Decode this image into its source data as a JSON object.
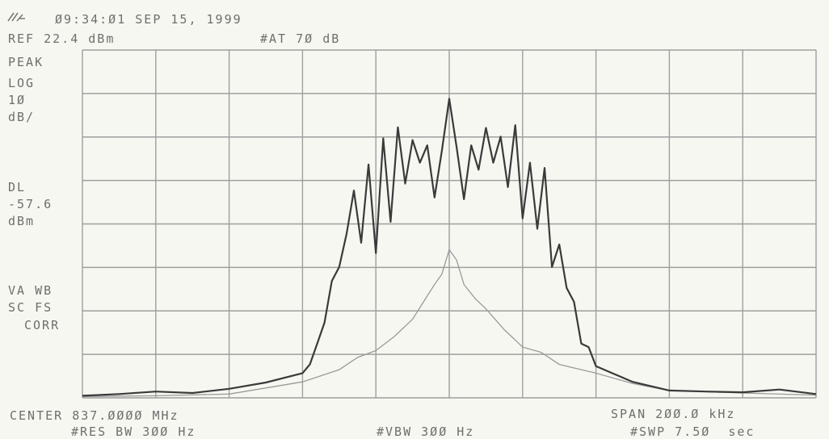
{
  "header": {
    "timestamp": "Ø9:34:Ø1 SEP 15, 1999",
    "ref_level": "REF 22.4 dBm",
    "attenuation": "#AT 7Ø dB"
  },
  "left_annotations": {
    "detector": "PEAK",
    "scale_mode": "LOG",
    "scale_value": "1Ø",
    "scale_unit": "dB/",
    "display_line_label": "DL",
    "display_line_value": "-57.6",
    "display_line_unit": "dBm",
    "va_wb": "VA WB",
    "sc_fs": "SC FS",
    "corr": "CORR"
  },
  "footer": {
    "center": "CENTER 837.ØØØØ MHz",
    "span": "SPAN 2ØØ.Ø kHz",
    "rbw": "#RES BW 3ØØ Hz",
    "vbw": "#VBW 3ØØ Hz",
    "sweep": "#SWP 7.5Ø  sec"
  },
  "colors": {
    "trace_a": "#3a3a3a",
    "trace_b": "#9a9a9a",
    "grid": "#9e9e9e",
    "text": "#6e6e6e"
  },
  "chart_data": {
    "type": "line",
    "xlabel": "",
    "ylabel": "",
    "xlim": [
      836.9,
      837.1
    ],
    "ylim": [
      -77.6,
      22.4
    ],
    "x_divisions": 10,
    "y_divisions": 8,
    "series": [
      {
        "x": [
          836.9,
          836.91,
          836.92,
          836.93,
          836.94,
          836.95,
          836.96,
          836.962,
          836.964,
          836.966,
          836.968,
          836.97,
          836.972,
          836.974,
          836.976,
          836.978,
          836.98,
          836.982,
          836.984,
          836.986,
          836.988,
          836.99,
          836.992,
          836.994,
          836.996,
          836.998,
          837.0,
          837.002,
          837.004,
          837.006,
          837.008,
          837.01,
          837.012,
          837.014,
          837.016,
          837.018,
          837.02,
          837.022,
          837.024,
          837.026,
          837.028,
          837.03,
          837.032,
          837.034,
          837.036,
          837.038,
          837.04,
          837.05,
          837.06,
          837.07,
          837.08,
          837.09,
          837.1
        ],
        "values": [
          -77.0,
          -76.5,
          -75.8,
          -76.2,
          -75.0,
          -73.2,
          -70.5,
          -68.0,
          -62.0,
          -56.0,
          -44.0,
          -40.0,
          -30.5,
          -18.0,
          -33.0,
          -10.5,
          -36.0,
          -3.0,
          -27.0,
          0.2,
          -16.0,
          -3.5,
          -10.0,
          -5.0,
          -20.0,
          -6.5,
          8.4,
          -5.5,
          -20.5,
          -5.0,
          -12.0,
          0.0,
          -10.0,
          -2.5,
          -17.0,
          0.8,
          -26.0,
          -10.0,
          -29.0,
          -11.5,
          -40.0,
          -33.5,
          -46.0,
          -50.0,
          -62.0,
          -63.0,
          -68.5,
          -73.0,
          -75.5,
          -75.8,
          -76.0,
          -75.2,
          -76.5
        ]
      },
      {
        "x": [
          836.9,
          836.92,
          836.94,
          836.96,
          836.97,
          836.975,
          836.98,
          836.985,
          836.99,
          836.993,
          836.996,
          836.998,
          837.0,
          837.002,
          837.004,
          837.007,
          837.01,
          837.015,
          837.02,
          837.025,
          837.03,
          837.04,
          837.05,
          837.06,
          837.08,
          837.1
        ],
        "values": [
          -77.2,
          -77.0,
          -76.5,
          -73.0,
          -69.5,
          -66.0,
          -64.0,
          -60.0,
          -55.0,
          -50.0,
          -45.0,
          -42.0,
          -35.0,
          -38.0,
          -45.0,
          -49.0,
          -52.0,
          -58.0,
          -63.0,
          -64.5,
          -68.0,
          -70.5,
          -73.5,
          -75.5,
          -76.2,
          -76.8
        ]
      }
    ]
  }
}
